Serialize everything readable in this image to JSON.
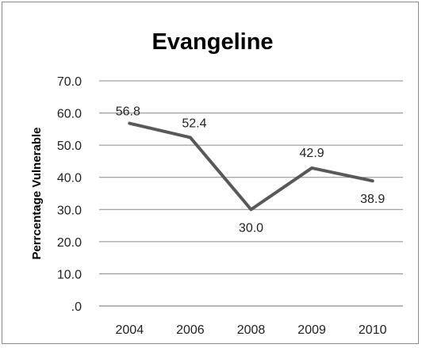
{
  "chart_data": {
    "type": "line",
    "title": "Evangeline",
    "xlabel": "",
    "ylabel": "Perrcentage Vulnerable",
    "categories": [
      "2004",
      "2006",
      "2008",
      "2009",
      "2010"
    ],
    "series": [
      {
        "values": [
          56.8,
          52.4,
          30.0,
          42.9,
          38.9
        ],
        "color": "#595959"
      }
    ],
    "data_labels": [
      "56.8",
      "52.4",
      "30.0",
      "42.9",
      "38.9"
    ],
    "ylim": [
      0,
      70
    ],
    "yticks": [
      0,
      10,
      20,
      30,
      40,
      50,
      60,
      70
    ],
    "ytick_labels": [
      ".0",
      "10.0",
      "20.0",
      "30.0",
      "40.0",
      "50.0",
      "60.0",
      "70.0"
    ],
    "grid": true,
    "legend": "none"
  }
}
